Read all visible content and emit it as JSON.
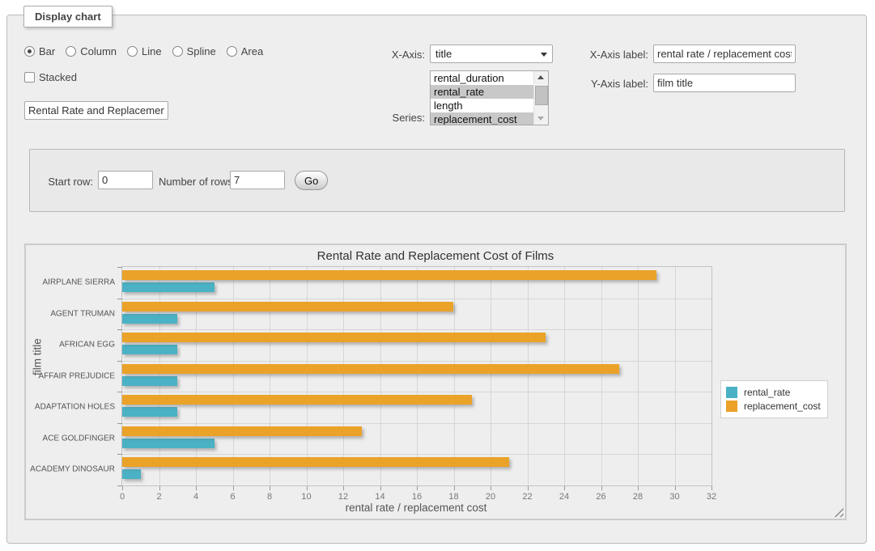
{
  "panel": {
    "legend": "Display chart"
  },
  "controls": {
    "chart_types": [
      {
        "label": "Bar",
        "selected": true
      },
      {
        "label": "Column",
        "selected": false
      },
      {
        "label": "Line",
        "selected": false
      },
      {
        "label": "Spline",
        "selected": false
      },
      {
        "label": "Area",
        "selected": false
      }
    ],
    "stacked_label": "Stacked",
    "title_value": "Rental Rate and Replacement Cost of Films",
    "x_axis": {
      "label": "X-Axis:",
      "selected_value": "title"
    },
    "series": {
      "label": "Series:",
      "options": [
        {
          "label": "rental_duration",
          "selected": false
        },
        {
          "label": "rental_rate",
          "selected": true
        },
        {
          "label": "length",
          "selected": false
        },
        {
          "label": "replacement_cost",
          "selected": true
        }
      ]
    },
    "x_axis_label_field": {
      "label": "X-Axis label:",
      "value": "rental rate / replacement cost"
    },
    "y_axis_label_field": {
      "label": "Y-Axis label:",
      "value": "film title"
    }
  },
  "row_controls": {
    "start_row_label": "Start row:",
    "start_row_value": "0",
    "num_rows_label": "Number of rows:",
    "num_rows_value": "7",
    "go_label": "Go"
  },
  "chart_data": {
    "type": "bar",
    "orientation": "horizontal",
    "title": "Rental Rate and Replacement Cost of Films",
    "categories": [
      "AIRPLANE SIERRA",
      "AGENT TRUMAN",
      "AFRICAN EGG",
      "AFFAIR PREJUDICE",
      "ADAPTATION HOLES",
      "ACE GOLDFINGER",
      "ACADEMY DINOSAUR"
    ],
    "series": [
      {
        "name": "rental_rate",
        "color": "#4bb2c5",
        "values": [
          4.99,
          2.99,
          2.99,
          2.99,
          2.99,
          4.99,
          0.99
        ]
      },
      {
        "name": "replacement_cost",
        "color": "#eaa228",
        "values": [
          28.99,
          17.99,
          22.99,
          26.99,
          18.99,
          12.99,
          20.99
        ]
      }
    ],
    "xlabel": "rental rate / replacement cost",
    "ylabel": "film title",
    "xlim": [
      0,
      32
    ],
    "x_ticks": [
      0,
      2,
      4,
      6,
      8,
      10,
      12,
      14,
      16,
      18,
      20,
      22,
      24,
      26,
      28,
      30,
      32
    ],
    "grid": true,
    "legend_position": "right"
  }
}
